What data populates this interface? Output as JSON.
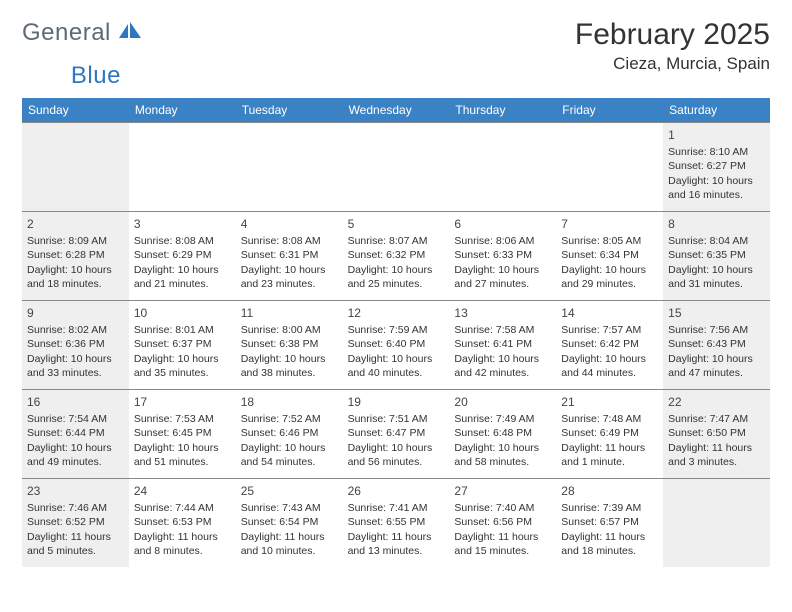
{
  "logo": {
    "general": "General",
    "blue": "Blue"
  },
  "title": {
    "month": "February 2025",
    "location": "Cieza, Murcia, Spain"
  },
  "colors": {
    "header_bg": "#3b82c4",
    "header_fg": "#ffffff",
    "shade_bg": "#efefef",
    "rule": "#888888",
    "logo_gray": "#5d6b76",
    "logo_blue": "#2f78bf"
  },
  "days_of_week": [
    "Sunday",
    "Monday",
    "Tuesday",
    "Wednesday",
    "Thursday",
    "Friday",
    "Saturday"
  ],
  "weeks": [
    [
      {
        "num": "",
        "lines": [],
        "shaded": true
      },
      {
        "num": "",
        "lines": [],
        "shaded": false
      },
      {
        "num": "",
        "lines": [],
        "shaded": false
      },
      {
        "num": "",
        "lines": [],
        "shaded": false
      },
      {
        "num": "",
        "lines": [],
        "shaded": false
      },
      {
        "num": "",
        "lines": [],
        "shaded": false
      },
      {
        "num": "1",
        "lines": [
          "Sunrise: 8:10 AM",
          "Sunset: 6:27 PM",
          "Daylight: 10 hours and 16 minutes."
        ],
        "shaded": true
      }
    ],
    [
      {
        "num": "2",
        "lines": [
          "Sunrise: 8:09 AM",
          "Sunset: 6:28 PM",
          "Daylight: 10 hours and 18 minutes."
        ],
        "shaded": true
      },
      {
        "num": "3",
        "lines": [
          "Sunrise: 8:08 AM",
          "Sunset: 6:29 PM",
          "Daylight: 10 hours and 21 minutes."
        ],
        "shaded": false
      },
      {
        "num": "4",
        "lines": [
          "Sunrise: 8:08 AM",
          "Sunset: 6:31 PM",
          "Daylight: 10 hours and 23 minutes."
        ],
        "shaded": false
      },
      {
        "num": "5",
        "lines": [
          "Sunrise: 8:07 AM",
          "Sunset: 6:32 PM",
          "Daylight: 10 hours and 25 minutes."
        ],
        "shaded": false
      },
      {
        "num": "6",
        "lines": [
          "Sunrise: 8:06 AM",
          "Sunset: 6:33 PM",
          "Daylight: 10 hours and 27 minutes."
        ],
        "shaded": false
      },
      {
        "num": "7",
        "lines": [
          "Sunrise: 8:05 AM",
          "Sunset: 6:34 PM",
          "Daylight: 10 hours and 29 minutes."
        ],
        "shaded": false
      },
      {
        "num": "8",
        "lines": [
          "Sunrise: 8:04 AM",
          "Sunset: 6:35 PM",
          "Daylight: 10 hours and 31 minutes."
        ],
        "shaded": true
      }
    ],
    [
      {
        "num": "9",
        "lines": [
          "Sunrise: 8:02 AM",
          "Sunset: 6:36 PM",
          "Daylight: 10 hours and 33 minutes."
        ],
        "shaded": true
      },
      {
        "num": "10",
        "lines": [
          "Sunrise: 8:01 AM",
          "Sunset: 6:37 PM",
          "Daylight: 10 hours and 35 minutes."
        ],
        "shaded": false
      },
      {
        "num": "11",
        "lines": [
          "Sunrise: 8:00 AM",
          "Sunset: 6:38 PM",
          "Daylight: 10 hours and 38 minutes."
        ],
        "shaded": false
      },
      {
        "num": "12",
        "lines": [
          "Sunrise: 7:59 AM",
          "Sunset: 6:40 PM",
          "Daylight: 10 hours and 40 minutes."
        ],
        "shaded": false
      },
      {
        "num": "13",
        "lines": [
          "Sunrise: 7:58 AM",
          "Sunset: 6:41 PM",
          "Daylight: 10 hours and 42 minutes."
        ],
        "shaded": false
      },
      {
        "num": "14",
        "lines": [
          "Sunrise: 7:57 AM",
          "Sunset: 6:42 PM",
          "Daylight: 10 hours and 44 minutes."
        ],
        "shaded": false
      },
      {
        "num": "15",
        "lines": [
          "Sunrise: 7:56 AM",
          "Sunset: 6:43 PM",
          "Daylight: 10 hours and 47 minutes."
        ],
        "shaded": true
      }
    ],
    [
      {
        "num": "16",
        "lines": [
          "Sunrise: 7:54 AM",
          "Sunset: 6:44 PM",
          "Daylight: 10 hours and 49 minutes."
        ],
        "shaded": true
      },
      {
        "num": "17",
        "lines": [
          "Sunrise: 7:53 AM",
          "Sunset: 6:45 PM",
          "Daylight: 10 hours and 51 minutes."
        ],
        "shaded": false
      },
      {
        "num": "18",
        "lines": [
          "Sunrise: 7:52 AM",
          "Sunset: 6:46 PM",
          "Daylight: 10 hours and 54 minutes."
        ],
        "shaded": false
      },
      {
        "num": "19",
        "lines": [
          "Sunrise: 7:51 AM",
          "Sunset: 6:47 PM",
          "Daylight: 10 hours and 56 minutes."
        ],
        "shaded": false
      },
      {
        "num": "20",
        "lines": [
          "Sunrise: 7:49 AM",
          "Sunset: 6:48 PM",
          "Daylight: 10 hours and 58 minutes."
        ],
        "shaded": false
      },
      {
        "num": "21",
        "lines": [
          "Sunrise: 7:48 AM",
          "Sunset: 6:49 PM",
          "Daylight: 11 hours and 1 minute."
        ],
        "shaded": false
      },
      {
        "num": "22",
        "lines": [
          "Sunrise: 7:47 AM",
          "Sunset: 6:50 PM",
          "Daylight: 11 hours and 3 minutes."
        ],
        "shaded": true
      }
    ],
    [
      {
        "num": "23",
        "lines": [
          "Sunrise: 7:46 AM",
          "Sunset: 6:52 PM",
          "Daylight: 11 hours and 5 minutes."
        ],
        "shaded": true
      },
      {
        "num": "24",
        "lines": [
          "Sunrise: 7:44 AM",
          "Sunset: 6:53 PM",
          "Daylight: 11 hours and 8 minutes."
        ],
        "shaded": false
      },
      {
        "num": "25",
        "lines": [
          "Sunrise: 7:43 AM",
          "Sunset: 6:54 PM",
          "Daylight: 11 hours and 10 minutes."
        ],
        "shaded": false
      },
      {
        "num": "26",
        "lines": [
          "Sunrise: 7:41 AM",
          "Sunset: 6:55 PM",
          "Daylight: 11 hours and 13 minutes."
        ],
        "shaded": false
      },
      {
        "num": "27",
        "lines": [
          "Sunrise: 7:40 AM",
          "Sunset: 6:56 PM",
          "Daylight: 11 hours and 15 minutes."
        ],
        "shaded": false
      },
      {
        "num": "28",
        "lines": [
          "Sunrise: 7:39 AM",
          "Sunset: 6:57 PM",
          "Daylight: 11 hours and 18 minutes."
        ],
        "shaded": false
      },
      {
        "num": "",
        "lines": [],
        "shaded": true
      }
    ]
  ]
}
